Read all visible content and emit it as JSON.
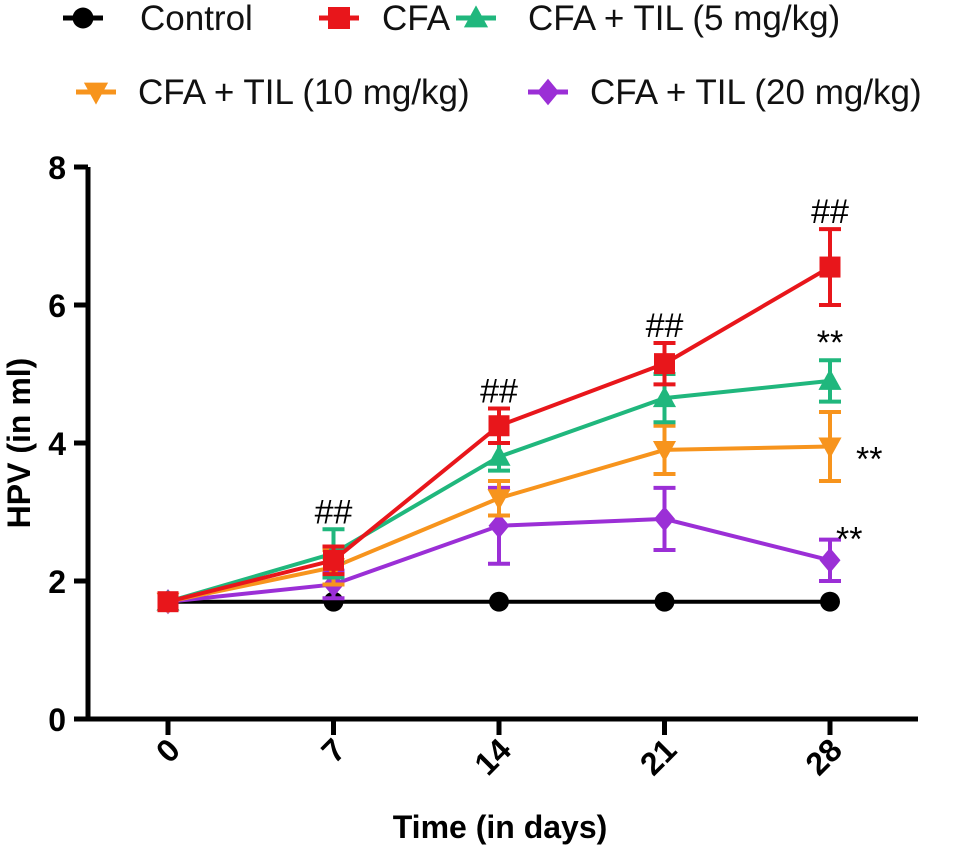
{
  "chart_data": {
    "type": "line",
    "title": "",
    "xlabel": "Time (in days)",
    "ylabel": "HPV (in ml)",
    "x": [
      0,
      7,
      14,
      21,
      28
    ],
    "x_tick_labels": [
      "0",
      "7",
      "14",
      "21",
      "28"
    ],
    "ylim": [
      0,
      8
    ],
    "y_ticks": [
      0,
      2,
      4,
      6,
      8
    ],
    "y_tick_labels": [
      "0",
      "2",
      "4",
      "6",
      "8"
    ],
    "legend_position": "top",
    "series": [
      {
        "name": "Control",
        "marker": "circle",
        "color": "#000000",
        "values": [
          1.7,
          1.7,
          1.7,
          1.7,
          1.7
        ],
        "errors": [
          0,
          0,
          0,
          0,
          0
        ]
      },
      {
        "name": "CFA",
        "marker": "square",
        "color": "#e8161b",
        "values": [
          1.7,
          2.3,
          4.25,
          5.15,
          6.55
        ],
        "errors": [
          0,
          0.2,
          0.25,
          0.3,
          0.55
        ]
      },
      {
        "name": "CFA + TIL (5 mg/kg)",
        "marker": "triangle-up",
        "color": "#20b77d",
        "values": [
          1.7,
          2.4,
          3.8,
          4.65,
          4.9
        ],
        "errors": [
          0,
          0.35,
          0.2,
          0.35,
          0.3
        ]
      },
      {
        "name": "CFA + TIL (10 mg/kg)",
        "marker": "triangle-down",
        "color": "#f7941d",
        "values": [
          1.7,
          2.2,
          3.2,
          3.9,
          3.95
        ],
        "errors": [
          0,
          0.25,
          0.25,
          0.35,
          0.5
        ]
      },
      {
        "name": "CFA +  TIL (20 mg/kg)",
        "marker": "diamond",
        "color": "#9b2fd6",
        "values": [
          1.7,
          1.95,
          2.8,
          2.9,
          2.3
        ],
        "errors": [
          0,
          0.2,
          0.55,
          0.45,
          0.3
        ]
      }
    ],
    "annotations": [
      {
        "text": "##",
        "x": 7,
        "y": 2.75,
        "anchor": "above"
      },
      {
        "text": "##",
        "x": 14,
        "y": 4.5,
        "anchor": "above"
      },
      {
        "text": "##",
        "x": 21,
        "y": 5.45,
        "anchor": "above"
      },
      {
        "text": "##",
        "x": 28,
        "y": 7.1,
        "anchor": "above"
      },
      {
        "text": "**",
        "x": 28,
        "y": 5.2,
        "anchor": "above"
      },
      {
        "text": "**",
        "x": 28,
        "y": 3.95,
        "anchor": "right"
      },
      {
        "text": "**",
        "x": 28,
        "y": 2.3,
        "anchor": "right-above"
      }
    ]
  }
}
